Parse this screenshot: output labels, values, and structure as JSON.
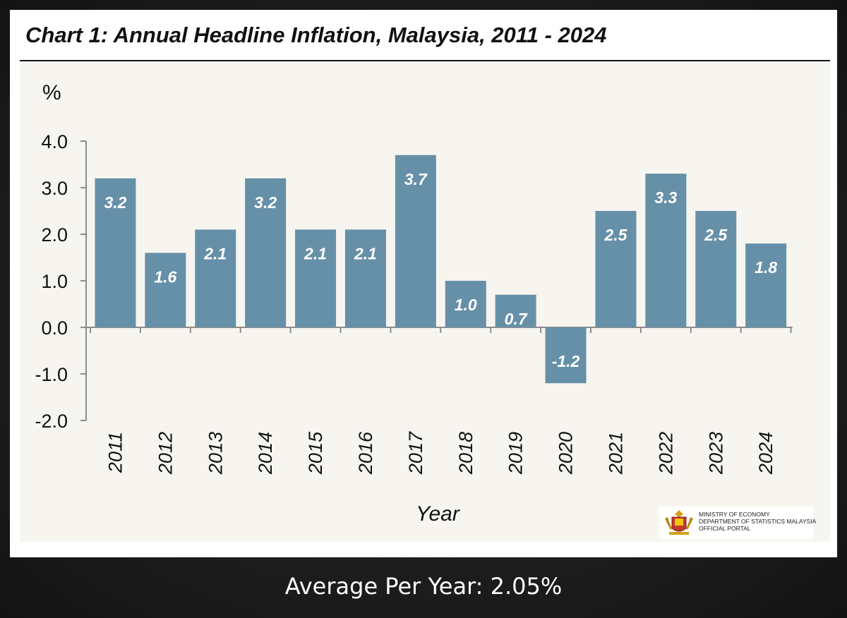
{
  "chart_data": {
    "type": "bar",
    "title": "Chart 1: Annual Headline Inflation, Malaysia, 2011 - 2024",
    "ylabel": "%",
    "xlabel": "Year",
    "categories": [
      "2011",
      "2012",
      "2013",
      "2014",
      "2015",
      "2016",
      "2017",
      "2018",
      "2019",
      "2020",
      "2021",
      "2022",
      "2023",
      "2024"
    ],
    "values": [
      3.2,
      1.6,
      2.1,
      3.2,
      2.1,
      2.1,
      3.7,
      1.0,
      0.7,
      -1.2,
      2.5,
      3.3,
      2.5,
      1.8
    ],
    "value_labels": [
      "3.2",
      "1.6",
      "2.1",
      "3.2",
      "2.1",
      "2.1",
      "3.7",
      "1.0",
      "0.7",
      "-1.2",
      "2.5",
      "3.3",
      "2.5",
      "1.8"
    ],
    "ylim": [
      -2.0,
      4.0
    ],
    "yticks": [
      "4.0",
      "3.0",
      "2.0",
      "1.0",
      "0.0",
      "-1.0",
      "-2.0"
    ],
    "ytick_values": [
      4.0,
      3.0,
      2.0,
      1.0,
      0.0,
      -1.0,
      -2.0
    ],
    "grid": false,
    "legend": "none",
    "bar_color": "#6690a8",
    "label_color": "#ffffff"
  },
  "logo": {
    "line1": "MINISTRY OF ECONOMY",
    "line2": "DEPARTMENT OF STATISTICS MALAYSIA",
    "line3": "OFFICIAL PORTAL"
  },
  "footer": "Average Per Year: 2.05%"
}
